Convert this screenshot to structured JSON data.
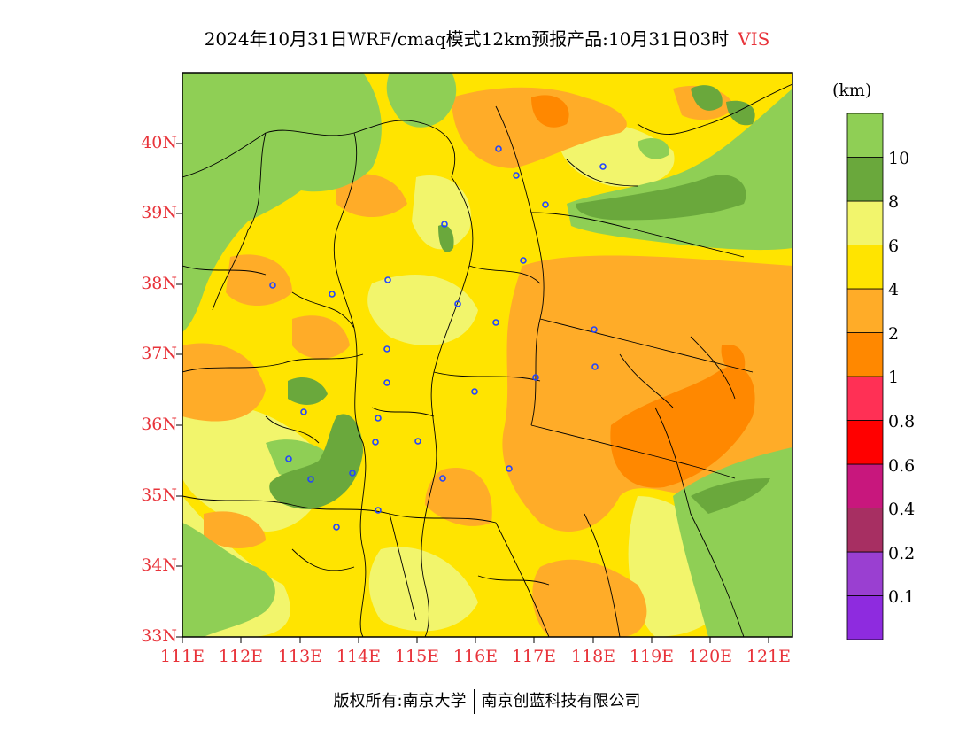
{
  "title": {
    "text": "2024年10月31日WRF/cmaq模式12km预报产品:10月31日03时",
    "variable": "VIS"
  },
  "colorbar": {
    "unit": "(km)",
    "colors": [
      "#8e2bdf",
      "#9a3fd1",
      "#a72f62",
      "#c8177d",
      "#ff0000",
      "#ff3055",
      "#ff8800",
      "#ffac28",
      "#ffe400",
      "#f2f56c",
      "#6aa83c",
      "#8fcf55"
    ],
    "labels": [
      "0.1",
      "0.2",
      "0.4",
      "0.6",
      "0.8",
      "1",
      "2",
      "4",
      "6",
      "8",
      "10"
    ]
  },
  "axes": {
    "lat_labels": [
      "40N",
      "39N",
      "38N",
      "37N",
      "36N",
      "35N",
      "34N",
      "33N"
    ],
    "lon_labels": [
      "111E",
      "112E",
      "113E",
      "114E",
      "115E",
      "116E",
      "117E",
      "118E",
      "119E",
      "120E",
      "121E"
    ]
  },
  "footer": {
    "left": "版权所有:南京大学",
    "right": "南京创蓝科技有限公司"
  }
}
